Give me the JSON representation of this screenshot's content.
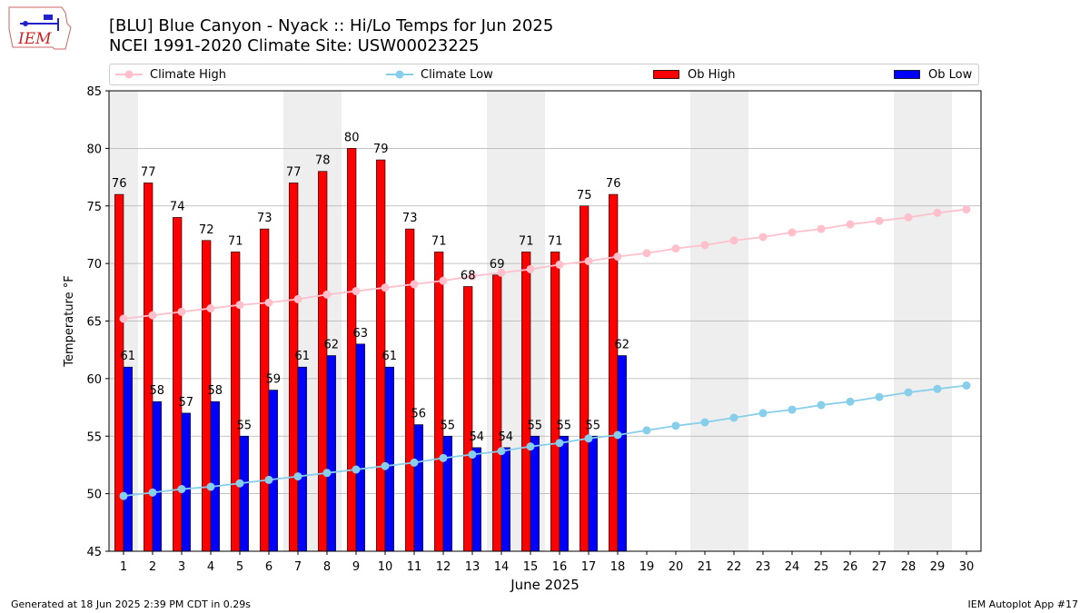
{
  "header": {
    "title_line1": "[BLU] Blue Canyon - Nyack :: Hi/Lo Temps for Jun 2025",
    "title_line2": "NCEI 1991-2020 Climate Site: USW00023225"
  },
  "logo": {
    "text": "IEM"
  },
  "footer": {
    "left": "Generated at 18 Jun 2025 2:39 PM CDT in 0.29s",
    "right": "IEM Autoplot App #17"
  },
  "chart_data": {
    "type": "bar",
    "xlabel": "June 2025",
    "ylabel": "Temperature °F",
    "xlim": [
      0.5,
      30.5
    ],
    "ylim": [
      45,
      85
    ],
    "yticks": [
      45,
      50,
      55,
      60,
      65,
      70,
      75,
      80,
      85
    ],
    "xticks": [
      1,
      2,
      3,
      4,
      5,
      6,
      7,
      8,
      9,
      10,
      11,
      12,
      13,
      14,
      15,
      16,
      17,
      18,
      19,
      20,
      21,
      22,
      23,
      24,
      25,
      26,
      27,
      28,
      29,
      30
    ],
    "grid": true,
    "legend": "top",
    "weekend_shading_days": [
      1,
      7,
      8,
      14,
      15,
      21,
      22,
      28,
      29
    ],
    "series": [
      {
        "name": "Climate High",
        "kind": "line",
        "color": "#ffc0cb",
        "x": [
          1,
          2,
          3,
          4,
          5,
          6,
          7,
          8,
          9,
          10,
          11,
          12,
          13,
          14,
          15,
          16,
          17,
          18,
          19,
          20,
          21,
          22,
          23,
          24,
          25,
          26,
          27,
          28,
          29,
          30
        ],
        "values": [
          65.2,
          65.5,
          65.8,
          66.1,
          66.4,
          66.6,
          66.9,
          67.3,
          67.6,
          67.9,
          68.2,
          68.5,
          68.9,
          69.2,
          69.5,
          69.9,
          70.2,
          70.6,
          70.9,
          71.3,
          71.6,
          72.0,
          72.3,
          72.7,
          73.0,
          73.4,
          73.7,
          74.0,
          74.4,
          74.7
        ]
      },
      {
        "name": "Climate Low",
        "kind": "line",
        "color": "#87ceeb",
        "x": [
          1,
          2,
          3,
          4,
          5,
          6,
          7,
          8,
          9,
          10,
          11,
          12,
          13,
          14,
          15,
          16,
          17,
          18,
          19,
          20,
          21,
          22,
          23,
          24,
          25,
          26,
          27,
          28,
          29,
          30
        ],
        "values": [
          49.8,
          50.1,
          50.4,
          50.6,
          50.9,
          51.2,
          51.5,
          51.8,
          52.1,
          52.4,
          52.7,
          53.1,
          53.4,
          53.7,
          54.1,
          54.4,
          54.8,
          55.1,
          55.5,
          55.9,
          56.2,
          56.6,
          57.0,
          57.3,
          57.7,
          58.0,
          58.4,
          58.8,
          59.1,
          59.4
        ]
      },
      {
        "name": "Ob High",
        "kind": "bar",
        "color": "#ff0000",
        "x": [
          1,
          2,
          3,
          4,
          5,
          6,
          7,
          8,
          9,
          10,
          11,
          12,
          13,
          14,
          15,
          16,
          17,
          18
        ],
        "values": [
          76,
          77,
          74,
          72,
          71,
          73,
          77,
          78,
          80,
          79,
          73,
          71,
          68,
          69,
          71,
          71,
          75,
          76
        ]
      },
      {
        "name": "Ob Low",
        "kind": "bar",
        "color": "#0000ff",
        "x": [
          1,
          2,
          3,
          4,
          5,
          6,
          7,
          8,
          9,
          10,
          11,
          12,
          13,
          14,
          15,
          16,
          17,
          18
        ],
        "values": [
          61,
          58,
          57,
          58,
          55,
          59,
          61,
          62,
          63,
          61,
          56,
          55,
          54,
          54,
          55,
          55,
          55,
          62
        ]
      }
    ]
  }
}
